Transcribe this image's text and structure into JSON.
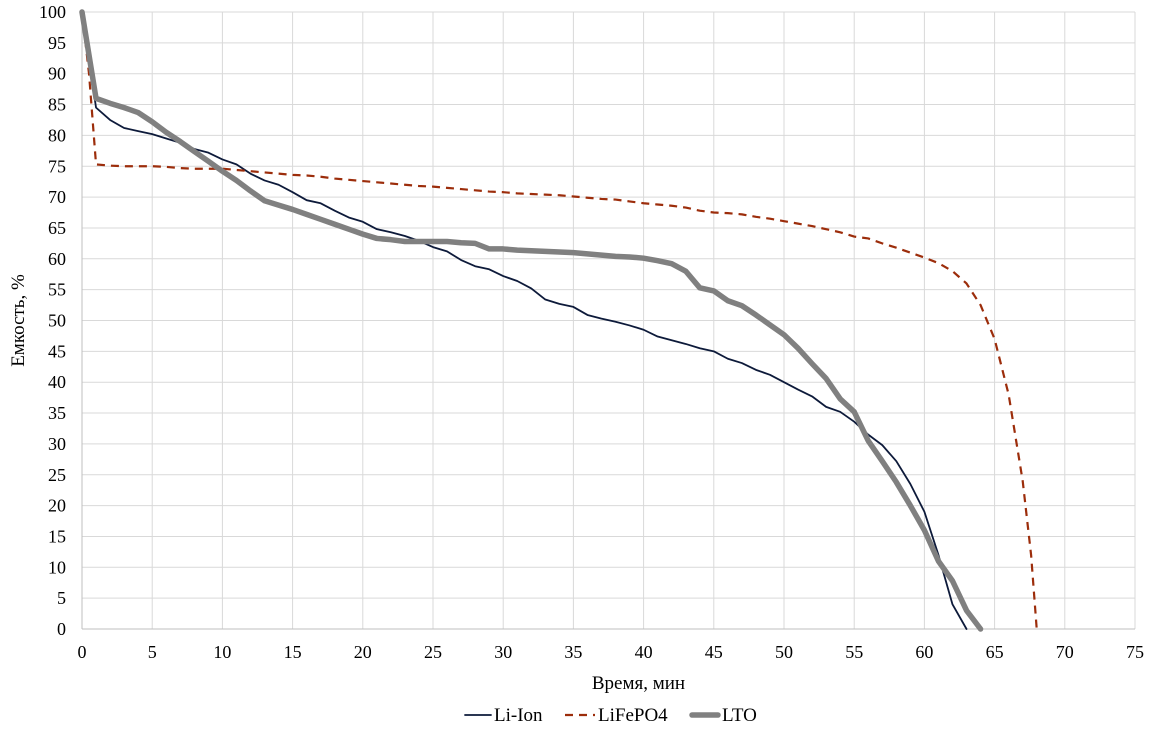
{
  "chart_data": {
    "type": "line",
    "title": "",
    "xlabel": "Время, мин",
    "ylabel": "Емкость, %",
    "xlim": [
      0,
      75
    ],
    "ylim": [
      0,
      100
    ],
    "x_ticks": [
      0,
      5,
      10,
      15,
      20,
      25,
      30,
      35,
      40,
      45,
      50,
      55,
      60,
      65,
      70,
      75
    ],
    "y_ticks": [
      0,
      5,
      10,
      15,
      20,
      25,
      30,
      35,
      40,
      45,
      50,
      55,
      60,
      65,
      70,
      75,
      80,
      85,
      90,
      95,
      100
    ],
    "grid": true,
    "legend_position": "bottom",
    "series": [
      {
        "name": "Li-Ion",
        "color": "#0d1a3a",
        "style": "solid-thin",
        "points": [
          [
            0,
            100
          ],
          [
            1,
            84.5
          ],
          [
            2,
            82.5
          ],
          [
            3,
            81.2
          ],
          [
            4,
            80.7
          ],
          [
            5,
            80.2
          ],
          [
            6,
            79.5
          ],
          [
            7,
            78.8
          ],
          [
            8,
            77.8
          ],
          [
            9,
            77.2
          ],
          [
            10,
            76.1
          ],
          [
            11,
            75.3
          ],
          [
            12,
            73.8
          ],
          [
            13,
            72.7
          ],
          [
            14,
            72
          ],
          [
            15,
            70.8
          ],
          [
            16,
            69.5
          ],
          [
            17,
            69
          ],
          [
            18,
            67.8
          ],
          [
            19,
            66.7
          ],
          [
            20,
            66
          ],
          [
            21,
            64.8
          ],
          [
            22,
            64.3
          ],
          [
            23,
            63.7
          ],
          [
            24,
            62.9
          ],
          [
            25,
            61.9
          ],
          [
            26,
            61.2
          ],
          [
            27,
            59.8
          ],
          [
            28,
            58.8
          ],
          [
            29,
            58.3
          ],
          [
            30,
            57.2
          ],
          [
            31,
            56.4
          ],
          [
            32,
            55.2
          ],
          [
            33,
            53.4
          ],
          [
            34,
            52.7
          ],
          [
            35,
            52.2
          ],
          [
            36,
            50.9
          ],
          [
            37,
            50.3
          ],
          [
            38,
            49.8
          ],
          [
            39,
            49.2
          ],
          [
            40,
            48.5
          ],
          [
            41,
            47.4
          ],
          [
            42,
            46.8
          ],
          [
            43,
            46.2
          ],
          [
            44,
            45.5
          ],
          [
            45,
            45
          ],
          [
            46,
            43.8
          ],
          [
            47,
            43.1
          ],
          [
            48,
            42
          ],
          [
            49,
            41.2
          ],
          [
            50,
            40
          ],
          [
            51,
            38.8
          ],
          [
            52,
            37.7
          ],
          [
            53,
            36
          ],
          [
            54,
            35.2
          ],
          [
            55,
            33.6
          ],
          [
            56,
            31.5
          ],
          [
            57,
            29.8
          ],
          [
            58,
            27.2
          ],
          [
            59,
            23.5
          ],
          [
            60,
            19
          ],
          [
            61,
            12
          ],
          [
            62,
            4
          ],
          [
            63,
            0
          ]
        ]
      },
      {
        "name": "LiFePO4",
        "color": "#9c2d0b",
        "style": "dashed",
        "points": [
          [
            0,
            100
          ],
          [
            0.5,
            90
          ],
          [
            1,
            75.3
          ],
          [
            2,
            75.1
          ],
          [
            3,
            75
          ],
          [
            4,
            75
          ],
          [
            5,
            75
          ],
          [
            6,
            74.9
          ],
          [
            7,
            74.7
          ],
          [
            8,
            74.6
          ],
          [
            9,
            74.6
          ],
          [
            10,
            74.6
          ],
          [
            11,
            74.4
          ],
          [
            12,
            74.2
          ],
          [
            13,
            74
          ],
          [
            14,
            73.8
          ],
          [
            15,
            73.6
          ],
          [
            16,
            73.5
          ],
          [
            17,
            73.3
          ],
          [
            18,
            73
          ],
          [
            19,
            72.8
          ],
          [
            20,
            72.6
          ],
          [
            21,
            72.4
          ],
          [
            22,
            72.2
          ],
          [
            23,
            72
          ],
          [
            24,
            71.8
          ],
          [
            25,
            71.7
          ],
          [
            26,
            71.5
          ],
          [
            27,
            71.3
          ],
          [
            28,
            71.1
          ],
          [
            29,
            70.9
          ],
          [
            30,
            70.8
          ],
          [
            31,
            70.6
          ],
          [
            32,
            70.5
          ],
          [
            33,
            70.4
          ],
          [
            34,
            70.3
          ],
          [
            35,
            70.1
          ],
          [
            36,
            69.9
          ],
          [
            37,
            69.7
          ],
          [
            38,
            69.6
          ],
          [
            39,
            69.3
          ],
          [
            40,
            69
          ],
          [
            41,
            68.8
          ],
          [
            42,
            68.6
          ],
          [
            43,
            68.3
          ],
          [
            44,
            67.8
          ],
          [
            45,
            67.5
          ],
          [
            46,
            67.4
          ],
          [
            47,
            67.2
          ],
          [
            48,
            66.8
          ],
          [
            49,
            66.5
          ],
          [
            50,
            66.1
          ],
          [
            51,
            65.7
          ],
          [
            52,
            65.3
          ],
          [
            53,
            64.8
          ],
          [
            54,
            64.3
          ],
          [
            55,
            63.6
          ],
          [
            56,
            63.3
          ],
          [
            57,
            62.5
          ],
          [
            58,
            61.8
          ],
          [
            59,
            61
          ],
          [
            60,
            60.2
          ],
          [
            61,
            59.3
          ],
          [
            62,
            58
          ],
          [
            63,
            56
          ],
          [
            64,
            52.5
          ],
          [
            65,
            47
          ],
          [
            66,
            38
          ],
          [
            67,
            24
          ],
          [
            67.6,
            12
          ],
          [
            68,
            0
          ]
        ]
      },
      {
        "name": "LTO",
        "color": "#808080",
        "style": "solid-thick",
        "points": [
          [
            0,
            100
          ],
          [
            1,
            86
          ],
          [
            2,
            85.2
          ],
          [
            3,
            84.5
          ],
          [
            4,
            83.7
          ],
          [
            5,
            82.2
          ],
          [
            6,
            80.5
          ],
          [
            7,
            79
          ],
          [
            8,
            77.4
          ],
          [
            9,
            75.8
          ],
          [
            10,
            74.2
          ],
          [
            11,
            72.7
          ],
          [
            12,
            71
          ],
          [
            13,
            69.4
          ],
          [
            14,
            68.7
          ],
          [
            15,
            68
          ],
          [
            16,
            67.2
          ],
          [
            17,
            66.4
          ],
          [
            18,
            65.6
          ],
          [
            19,
            64.8
          ],
          [
            20,
            64
          ],
          [
            21,
            63.3
          ],
          [
            22,
            63.1
          ],
          [
            23,
            62.8
          ],
          [
            24,
            62.8
          ],
          [
            25,
            62.8
          ],
          [
            26,
            62.8
          ],
          [
            27,
            62.6
          ],
          [
            28,
            62.5
          ],
          [
            29,
            61.6
          ],
          [
            30,
            61.6
          ],
          [
            31,
            61.4
          ],
          [
            32,
            61.3
          ],
          [
            33,
            61.2
          ],
          [
            34,
            61.1
          ],
          [
            35,
            61
          ],
          [
            36,
            60.8
          ],
          [
            37,
            60.6
          ],
          [
            38,
            60.4
          ],
          [
            39,
            60.3
          ],
          [
            40,
            60.1
          ],
          [
            41,
            59.7
          ],
          [
            42,
            59.2
          ],
          [
            43,
            58
          ],
          [
            44,
            55.3
          ],
          [
            45,
            54.8
          ],
          [
            46,
            53.2
          ],
          [
            47,
            52.4
          ],
          [
            48,
            50.9
          ],
          [
            49,
            49.3
          ],
          [
            50,
            47.7
          ],
          [
            51,
            45.5
          ],
          [
            52,
            43
          ],
          [
            53,
            40.6
          ],
          [
            54,
            37.3
          ],
          [
            55,
            35.2
          ],
          [
            56,
            30.5
          ],
          [
            57,
            27.2
          ],
          [
            58,
            23.8
          ],
          [
            59,
            20
          ],
          [
            60,
            16
          ],
          [
            61,
            11
          ],
          [
            62,
            7.8
          ],
          [
            63,
            3
          ],
          [
            64,
            0
          ]
        ]
      }
    ]
  }
}
